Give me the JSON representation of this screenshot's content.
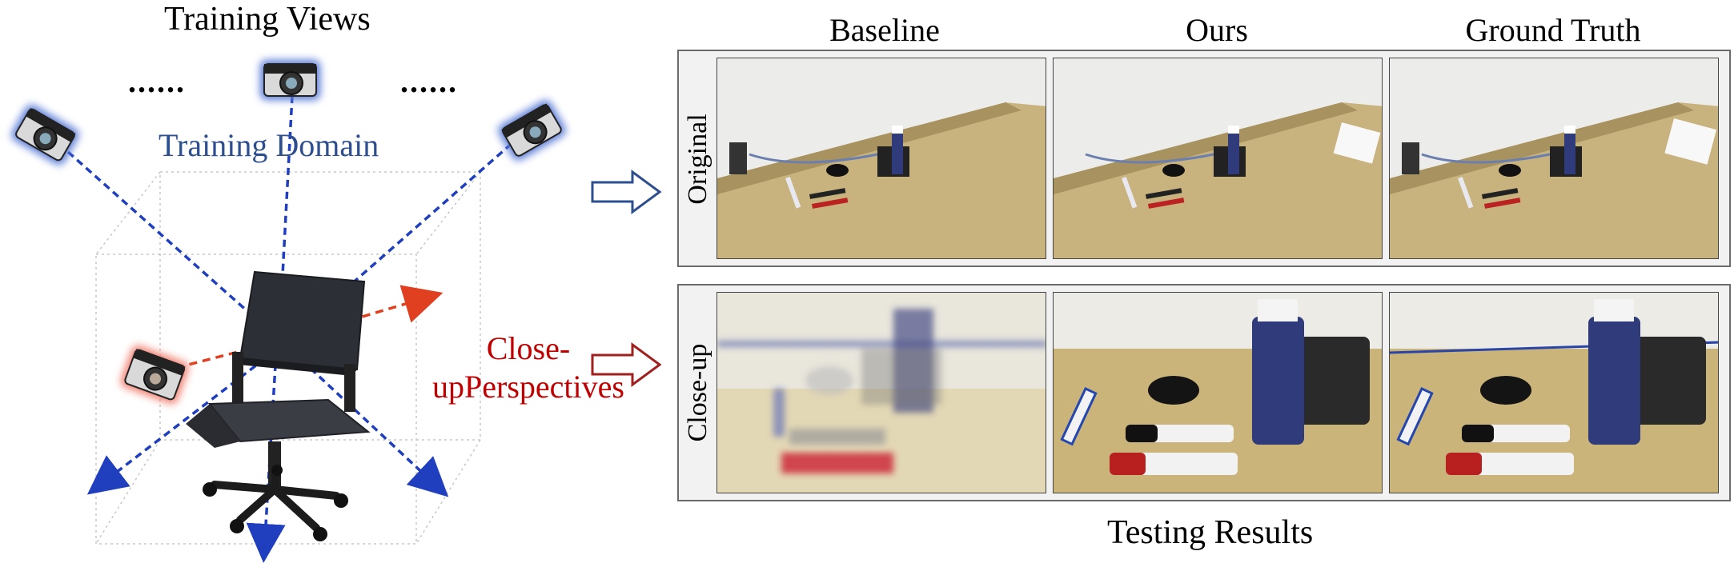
{
  "left_panel": {
    "title": "Training Views",
    "domain_label": "Training Domain",
    "closeup_label_line1": "Close-",
    "closeup_label_line2": "up",
    "closeup_label_line3": "Perspectives",
    "ellipsis_left": "......",
    "ellipsis_right": "......",
    "icons": [
      "camera-icon",
      "chair-icon",
      "arrow-icon"
    ]
  },
  "right_panel": {
    "columns": [
      "Baseline",
      "Ours",
      "Ground Truth"
    ],
    "rows": [
      "Original",
      "Close-up"
    ],
    "caption": "Testing Results"
  },
  "colors": {
    "blue_ray": "#1f3fbf",
    "red_ray": "#e0401f",
    "blue_text": "#2e4f8f",
    "red_text": "#c00000",
    "desk": "#c8b27e",
    "wall": "#ececea"
  }
}
